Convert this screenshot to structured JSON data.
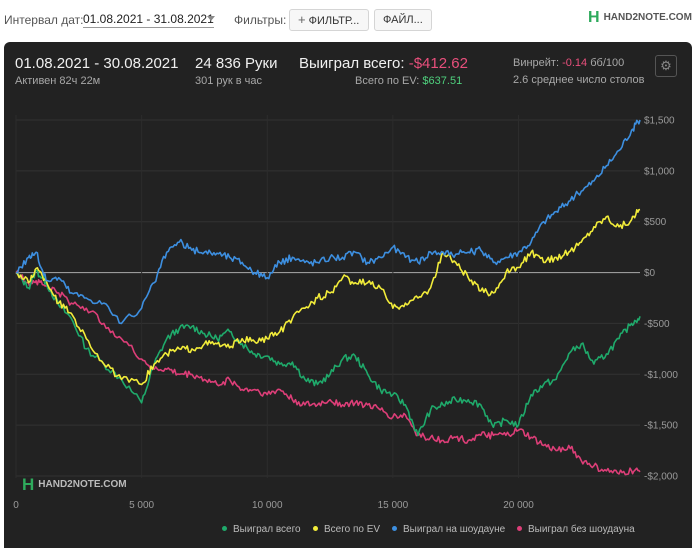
{
  "toolbar": {
    "date_label": "Интервал дат:",
    "date_range": "01.08.2021 - 31.08.2021",
    "filters_label": "Фильтры:",
    "filter_button": "ФИЛЬТР...",
    "file_button": "ФАЙЛ...",
    "logo_text": "HAND2NOTE.COM"
  },
  "stats": {
    "period": "01.08.2021 - 30.08.2021",
    "active": "Активен 82ч 22м",
    "hands": "24 836 Руки",
    "hands_per_hour": "301 рук в час",
    "won_label": "Выиграл всего:",
    "won_value": "-$412.62",
    "ev_label": "Всего по EV:",
    "ev_value": "$637.51",
    "winrate_label": "Винрейт:",
    "winrate_value": "-0.14",
    "winrate_unit": "бб/100",
    "tables": "2.6 среднее число столов"
  },
  "colors": {
    "won_total": "#1faa6b",
    "ev_total": "#f2ec3a",
    "showdown": "#3d8fe0",
    "non_showdown": "#dd3e78",
    "zero_line": "#9a9a9a",
    "panel_bg": "#222222"
  },
  "chart_data": {
    "type": "line",
    "title": "",
    "xlabel": "",
    "ylabel": "",
    "xlim": [
      0,
      24836
    ],
    "ylim": [
      -2000,
      1500
    ],
    "x_ticks": [
      0,
      5000,
      10000,
      15000,
      20000
    ],
    "x_tick_labels": [
      "0",
      "5 000",
      "10 000",
      "15 000",
      "20 000"
    ],
    "y_ticks": [
      1500,
      1000,
      500,
      0,
      -500,
      -1000,
      -1500,
      -2000
    ],
    "y_tick_labels": [
      "$1,500",
      "$1,000",
      "$500",
      "$0",
      "-$500",
      "-$1,000",
      "-$1,500",
      "-$2,000"
    ],
    "grid": true,
    "legend_position": "bottom",
    "series": [
      {
        "name": "Выиграл всего",
        "color": "#1faa6b",
        "points": [
          [
            0,
            0
          ],
          [
            500,
            -150
          ],
          [
            800,
            20
          ],
          [
            1200,
            -100
          ],
          [
            1700,
            -320
          ],
          [
            2200,
            -450
          ],
          [
            2800,
            -750
          ],
          [
            3500,
            -900
          ],
          [
            4200,
            -1050
          ],
          [
            5000,
            -1280
          ],
          [
            5500,
            -900
          ],
          [
            6000,
            -650
          ],
          [
            6500,
            -550
          ],
          [
            7000,
            -530
          ],
          [
            7500,
            -600
          ],
          [
            8000,
            -650
          ],
          [
            8500,
            -580
          ],
          [
            9000,
            -700
          ],
          [
            9500,
            -800
          ],
          [
            10000,
            -820
          ],
          [
            10500,
            -900
          ],
          [
            11000,
            -880
          ],
          [
            11500,
            -1050
          ],
          [
            12000,
            -1100
          ],
          [
            12500,
            -1000
          ],
          [
            13000,
            -850
          ],
          [
            13500,
            -820
          ],
          [
            14000,
            -1000
          ],
          [
            14500,
            -1150
          ],
          [
            15000,
            -1200
          ],
          [
            15500,
            -1300
          ],
          [
            16000,
            -1600
          ],
          [
            16500,
            -1350
          ],
          [
            17000,
            -1300
          ],
          [
            17500,
            -1250
          ],
          [
            18000,
            -1250
          ],
          [
            18500,
            -1300
          ],
          [
            19000,
            -1520
          ],
          [
            19500,
            -1450
          ],
          [
            20000,
            -1500
          ],
          [
            20500,
            -1200
          ],
          [
            21000,
            -1100
          ],
          [
            21500,
            -1050
          ],
          [
            22000,
            -800
          ],
          [
            22500,
            -700
          ],
          [
            23000,
            -900
          ],
          [
            23500,
            -800
          ],
          [
            24000,
            -650
          ],
          [
            24500,
            -500
          ],
          [
            24836,
            -430
          ]
        ]
      },
      {
        "name": "Всего по EV",
        "color": "#f2ec3a",
        "points": [
          [
            0,
            0
          ],
          [
            500,
            -100
          ],
          [
            800,
            40
          ],
          [
            1200,
            -80
          ],
          [
            1700,
            -300
          ],
          [
            2200,
            -400
          ],
          [
            2800,
            -650
          ],
          [
            3500,
            -900
          ],
          [
            4200,
            -1050
          ],
          [
            5000,
            -1100
          ],
          [
            5500,
            -900
          ],
          [
            6000,
            -800
          ],
          [
            6500,
            -750
          ],
          [
            7000,
            -750
          ],
          [
            7500,
            -700
          ],
          [
            8000,
            -700
          ],
          [
            8500,
            -740
          ],
          [
            9000,
            -650
          ],
          [
            9500,
            -680
          ],
          [
            10000,
            -650
          ],
          [
            10500,
            -580
          ],
          [
            11000,
            -450
          ],
          [
            11500,
            -350
          ],
          [
            12000,
            -250
          ],
          [
            12500,
            -200
          ],
          [
            13000,
            -50
          ],
          [
            13500,
            -100
          ],
          [
            14000,
            -100
          ],
          [
            14500,
            -150
          ],
          [
            15000,
            -350
          ],
          [
            15500,
            -300
          ],
          [
            16000,
            -250
          ],
          [
            16500,
            -150
          ],
          [
            17000,
            200
          ],
          [
            17500,
            100
          ],
          [
            18000,
            -50
          ],
          [
            18500,
            -180
          ],
          [
            19000,
            -200
          ],
          [
            19500,
            0
          ],
          [
            20000,
            50
          ],
          [
            20500,
            200
          ],
          [
            21000,
            100
          ],
          [
            21500,
            150
          ],
          [
            22000,
            200
          ],
          [
            22500,
            300
          ],
          [
            23000,
            450
          ],
          [
            23500,
            550
          ],
          [
            24000,
            450
          ],
          [
            24500,
            520
          ],
          [
            24836,
            620
          ]
        ]
      },
      {
        "name": "Выиграл на шоудауне",
        "color": "#3d8fe0",
        "points": [
          [
            0,
            0
          ],
          [
            500,
            150
          ],
          [
            800,
            200
          ],
          [
            1200,
            -80
          ],
          [
            1700,
            -50
          ],
          [
            2200,
            -200
          ],
          [
            2800,
            -250
          ],
          [
            3500,
            -300
          ],
          [
            4200,
            -500
          ],
          [
            5000,
            -350
          ],
          [
            5500,
            -100
          ],
          [
            6000,
            200
          ],
          [
            6500,
            300
          ],
          [
            7000,
            220
          ],
          [
            7500,
            200
          ],
          [
            8000,
            190
          ],
          [
            8500,
            150
          ],
          [
            9000,
            100
          ],
          [
            9500,
            0
          ],
          [
            10000,
            -50
          ],
          [
            10500,
            100
          ],
          [
            11000,
            150
          ],
          [
            11500,
            100
          ],
          [
            12000,
            100
          ],
          [
            12500,
            150
          ],
          [
            13000,
            150
          ],
          [
            13500,
            200
          ],
          [
            14000,
            100
          ],
          [
            14500,
            150
          ],
          [
            15000,
            250
          ],
          [
            15500,
            150
          ],
          [
            16000,
            100
          ],
          [
            16500,
            200
          ],
          [
            17000,
            200
          ],
          [
            17500,
            180
          ],
          [
            18000,
            200
          ],
          [
            18500,
            220
          ],
          [
            19000,
            100
          ],
          [
            19500,
            150
          ],
          [
            20000,
            200
          ],
          [
            20500,
            300
          ],
          [
            21000,
            500
          ],
          [
            21500,
            600
          ],
          [
            22000,
            700
          ],
          [
            22500,
            800
          ],
          [
            23000,
            900
          ],
          [
            23500,
            1050
          ],
          [
            24000,
            1200
          ],
          [
            24500,
            1400
          ],
          [
            24836,
            1500
          ]
        ]
      },
      {
        "name": "Выиграл без шоудауна",
        "color": "#dd3e78",
        "points": [
          [
            0,
            0
          ],
          [
            500,
            -100
          ],
          [
            800,
            -80
          ],
          [
            1200,
            -130
          ],
          [
            1700,
            -200
          ],
          [
            2200,
            -300
          ],
          [
            2800,
            -350
          ],
          [
            3500,
            -500
          ],
          [
            4200,
            -650
          ],
          [
            5000,
            -850
          ],
          [
            5500,
            -950
          ],
          [
            6000,
            -950
          ],
          [
            6500,
            -1000
          ],
          [
            7000,
            -1000
          ],
          [
            7500,
            -1050
          ],
          [
            8000,
            -1100
          ],
          [
            8500,
            -1050
          ],
          [
            9000,
            -1150
          ],
          [
            9500,
            -1150
          ],
          [
            10000,
            -1200
          ],
          [
            10500,
            -1150
          ],
          [
            11000,
            -1250
          ],
          [
            11500,
            -1300
          ],
          [
            12000,
            -1300
          ],
          [
            12500,
            -1250
          ],
          [
            13000,
            -1300
          ],
          [
            13500,
            -1280
          ],
          [
            14000,
            -1300
          ],
          [
            14500,
            -1350
          ],
          [
            15000,
            -1420
          ],
          [
            15500,
            -1400
          ],
          [
            16000,
            -1600
          ],
          [
            16500,
            -1620
          ],
          [
            17000,
            -1650
          ],
          [
            17500,
            -1620
          ],
          [
            18000,
            -1650
          ],
          [
            18500,
            -1600
          ],
          [
            19000,
            -1600
          ],
          [
            19500,
            -1600
          ],
          [
            20000,
            -1550
          ],
          [
            20500,
            -1620
          ],
          [
            21000,
            -1700
          ],
          [
            21500,
            -1750
          ],
          [
            22000,
            -1700
          ],
          [
            22500,
            -1850
          ],
          [
            23000,
            -1900
          ],
          [
            23500,
            -1950
          ],
          [
            24000,
            -1980
          ],
          [
            24500,
            -1950
          ],
          [
            24836,
            -1960
          ]
        ]
      }
    ]
  }
}
